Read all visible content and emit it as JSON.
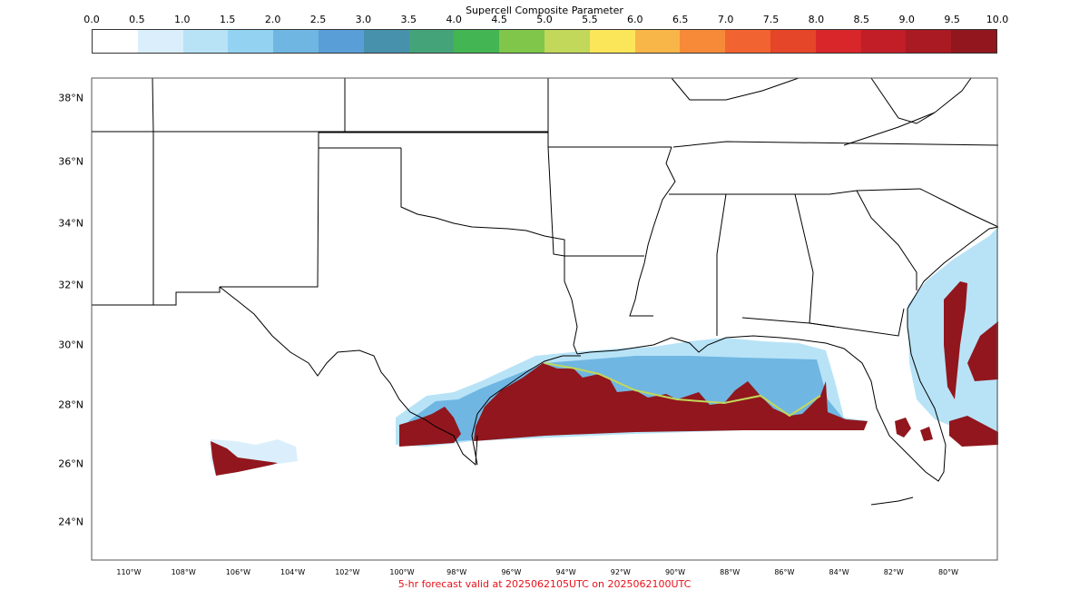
{
  "colorbar": {
    "title": "Supercell Composite Parameter",
    "ticks": [
      "0.0",
      "0.5",
      "1.0",
      "1.5",
      "2.0",
      "2.5",
      "3.0",
      "3.5",
      "4.0",
      "4.5",
      "5.0",
      "5.5",
      "6.0",
      "6.5",
      "7.0",
      "7.5",
      "8.0",
      "8.5",
      "9.0",
      "9.5",
      "10.0"
    ],
    "colors": [
      "#ffffff",
      "#daeffb",
      "#b8e3f7",
      "#94d2f2",
      "#70b6e2",
      "#5a9ed8",
      "#4791ad",
      "#45a37a",
      "#44b553",
      "#7fc64a",
      "#c1d85a",
      "#fbe65a",
      "#f9b648",
      "#f68a38",
      "#f16330",
      "#e54528",
      "#d8262a",
      "#c21e28",
      "#a91a22",
      "#91161d"
    ]
  },
  "map": {
    "lat_labels": [
      "38°N",
      "36°N",
      "34°N",
      "32°N",
      "30°N",
      "28°N",
      "26°N",
      "24°N"
    ],
    "lon_labels": [
      "110°W",
      "108°W",
      "106°W",
      "104°W",
      "102°W",
      "100°W",
      "98°W",
      "96°W",
      "94°W",
      "92°W",
      "90°W",
      "88°W",
      "86°W",
      "84°W",
      "82°W",
      "80°W"
    ],
    "colors": {
      "land_lines": "#000000",
      "frame": "#555555"
    }
  },
  "footer": {
    "text": "5-hr forecast valid at 2025062105UTC on 2025062100UTC",
    "color": "#e8101a"
  }
}
